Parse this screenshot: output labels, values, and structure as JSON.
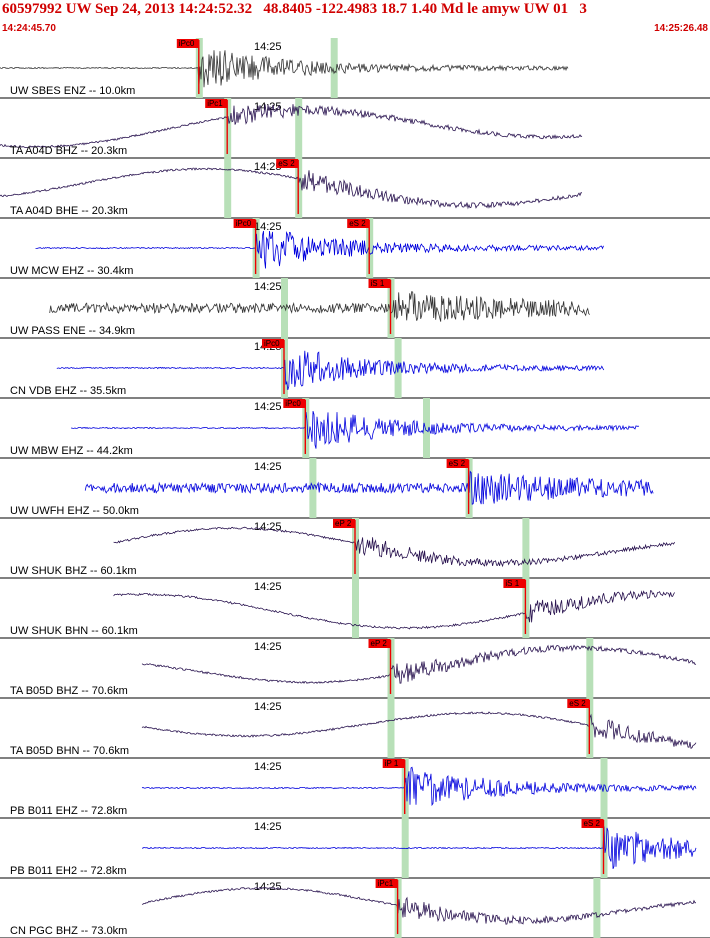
{
  "header": {
    "title": "60597992 UW Sep 24, 2013 14:24:52.32   48.8405 -122.4983 18.7 1.40 Md le amyw UW 01   3",
    "time_start": "14:24:45.70",
    "time_end": "14:25:26.48"
  },
  "colors": {
    "title": "#d00000",
    "pick": "#ee0000",
    "window": "#b8e0b8",
    "trace_gray": "#333333",
    "trace_purple": "#2a1450",
    "trace_blue": "#0000dd"
  },
  "minute_mark_label": "14:25",
  "traces": [
    {
      "label": "UW SBES ENZ -- 10.0km",
      "color": "trace_gray",
      "pick": "iPc0",
      "pick_kind": "P",
      "s_pick": "",
      "style": "quake",
      "t_pick": 0.28,
      "t_s": 0.47,
      "start": 0.0,
      "end": 0.8
    },
    {
      "label": "TA A04D BHZ -- 20.3km",
      "color": "trace_purple",
      "pick": "iPc1",
      "pick_kind": "P",
      "s_pick": "",
      "style": "wave",
      "t_pick": 0.32,
      "t_s": 0.42,
      "start": 0.0,
      "end": 0.82
    },
    {
      "label": "TA A04D BHE -- 20.3km",
      "color": "trace_purple",
      "pick": "eS 2",
      "pick_kind": "S",
      "s_pick": "",
      "style": "wave",
      "t_pick": 0.42,
      "t_s": 0.32,
      "start": 0.0,
      "end": 0.82
    },
    {
      "label": "UW MCW EHZ -- 30.4km",
      "color": "trace_blue",
      "pick": "iPc0",
      "pick_kind": "P",
      "s_pick": "eS 2",
      "style": "quake",
      "t_pick": 0.36,
      "t_s": 0.52,
      "start": 0.05,
      "end": 0.85
    },
    {
      "label": "UW PASS ENE -- 34.9km",
      "color": "trace_gray",
      "pick": "iS 1",
      "pick_kind": "S",
      "s_pick": "",
      "style": "noise",
      "t_pick": 0.55,
      "t_s": 0.4,
      "start": 0.07,
      "end": 0.83
    },
    {
      "label": "CN VDB EHZ -- 35.5km",
      "color": "trace_blue",
      "pick": "iPc0",
      "pick_kind": "P",
      "s_pick": "",
      "style": "quake",
      "t_pick": 0.4,
      "t_s": 0.56,
      "start": 0.08,
      "end": 0.85
    },
    {
      "label": "UW MBW EHZ -- 44.2km",
      "color": "trace_blue",
      "pick": "iPc0",
      "pick_kind": "P",
      "s_pick": "",
      "style": "quake",
      "t_pick": 0.43,
      "t_s": 0.6,
      "start": 0.1,
      "end": 0.9
    },
    {
      "label": "UW UWFH EHZ -- 50.0km",
      "color": "trace_blue",
      "pick": "eS 2",
      "pick_kind": "S",
      "s_pick": "",
      "style": "noise",
      "t_pick": 0.66,
      "t_s": 0.44,
      "start": 0.12,
      "end": 0.92
    },
    {
      "label": "UW SHUK BHZ -- 60.1km",
      "color": "trace_purple",
      "pick": "eP 2",
      "pick_kind": "P",
      "s_pick": "",
      "style": "wave",
      "t_pick": 0.5,
      "t_s": 0.74,
      "start": 0.16,
      "end": 0.95
    },
    {
      "label": "UW SHUK BHN -- 60.1km",
      "color": "trace_purple",
      "pick": "iS 1",
      "pick_kind": "S",
      "s_pick": "",
      "style": "wave",
      "t_pick": 0.74,
      "t_s": 0.5,
      "start": 0.16,
      "end": 0.95
    },
    {
      "label": "TA B05D BHZ -- 70.6km",
      "color": "trace_purple",
      "pick": "eP 2",
      "pick_kind": "P",
      "s_pick": "",
      "style": "wave",
      "t_pick": 0.55,
      "t_s": 0.83,
      "start": 0.2,
      "end": 0.98
    },
    {
      "label": "TA B05D BHN -- 70.6km",
      "color": "trace_purple",
      "pick": "eS 2",
      "pick_kind": "S",
      "s_pick": "",
      "style": "wave",
      "t_pick": 0.83,
      "t_s": 0.55,
      "start": 0.2,
      "end": 0.98
    },
    {
      "label": "PB B011 EHZ -- 72.8km",
      "color": "trace_blue",
      "pick": "iP 1",
      "pick_kind": "P",
      "s_pick": "",
      "style": "quake",
      "t_pick": 0.57,
      "t_s": 0.85,
      "start": 0.2,
      "end": 0.98
    },
    {
      "label": "PB B011 EH2 -- 72.8km",
      "color": "trace_blue",
      "pick": "eS 2",
      "pick_kind": "S",
      "s_pick": "",
      "style": "quake",
      "t_pick": 0.85,
      "t_s": 0.57,
      "start": 0.2,
      "end": 0.98
    },
    {
      "label": "CN PGC BHZ -- 73.0km",
      "color": "trace_purple",
      "pick": "iPc1",
      "pick_kind": "P",
      "s_pick": "",
      "style": "wave",
      "t_pick": 0.56,
      "t_s": 0.84,
      "start": 0.2,
      "end": 0.98
    }
  ]
}
